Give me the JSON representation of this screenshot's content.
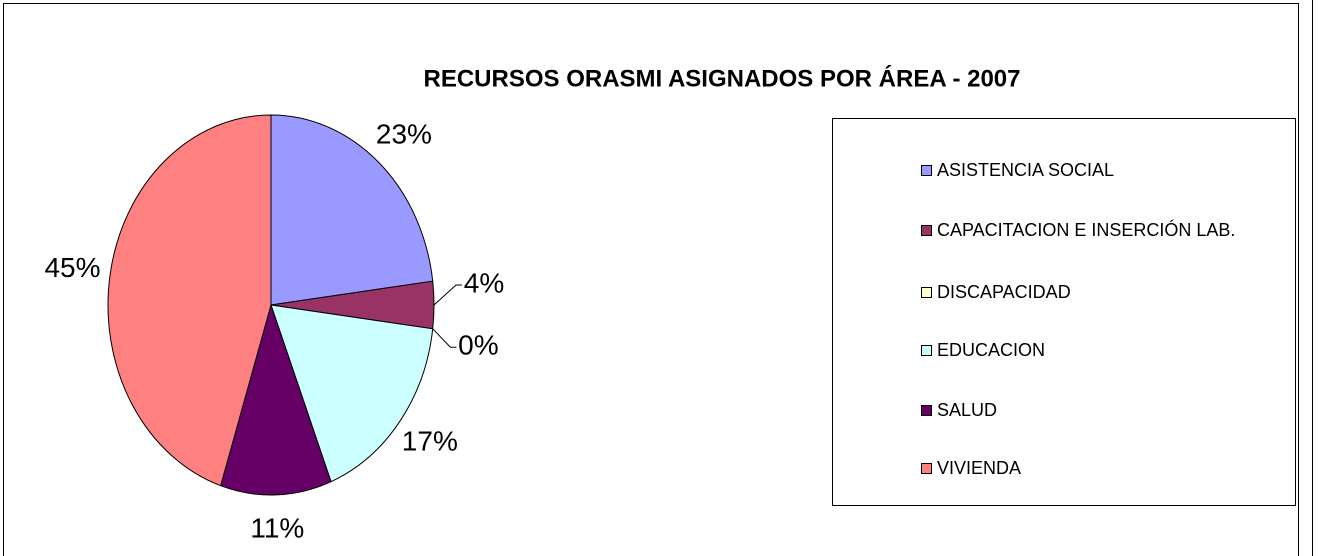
{
  "chart_data": {
    "type": "pie",
    "title": "RECURSOS ORASMI ASIGNADOS POR ÁREA - 2007",
    "categories": [
      "ASISTENCIA SOCIAL",
      "CAPACITACION E INSERCIÓN LAB.",
      "DISCAPACIDAD",
      "EDUCACION",
      "SALUD",
      "VIVIENDA"
    ],
    "values": [
      23,
      4,
      0,
      17,
      11,
      45
    ],
    "value_labels": [
      "23%",
      "4%",
      "0%",
      "17%",
      "11%",
      "45%"
    ],
    "colors": [
      "#9999FF",
      "#993366",
      "#FFFFCC",
      "#CCFFFF",
      "#660066",
      "#FF8080"
    ],
    "legend": "right"
  }
}
